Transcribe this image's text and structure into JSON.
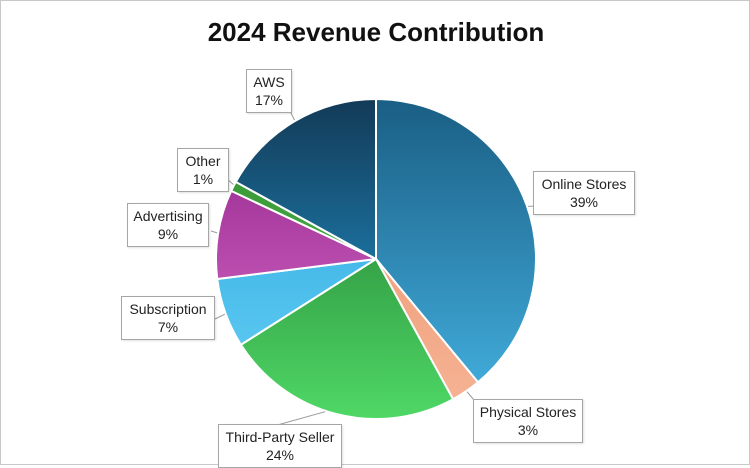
{
  "chart_data": {
    "type": "pie",
    "title": "2024 Revenue Contribution",
    "slices": [
      {
        "label": "Online Stores",
        "value": 39,
        "value_label": "39%",
        "color_light": "#45b3e3",
        "color_dark": "#1a5e84"
      },
      {
        "label": "Physical Stores",
        "value": 3,
        "value_label": "3%",
        "color_light": "#f6b496",
        "color_dark": "#ea9067"
      },
      {
        "label": "Third-Party Seller",
        "value": 24,
        "value_label": "24%",
        "color_light": "#4fd866",
        "color_dark": "#1b6e28"
      },
      {
        "label": "Subscription",
        "value": 7,
        "value_label": "7%",
        "color_light": "#67d0f6",
        "color_dark": "#26a3dc"
      },
      {
        "label": "Advertising",
        "value": 9,
        "value_label": "9%",
        "color_light": "#de74d2",
        "color_dark": "#8e1f84"
      },
      {
        "label": "Other",
        "value": 1,
        "value_label": "1%",
        "color_light": "#5cc95a",
        "color_dark": "#2e8a2c"
      },
      {
        "label": "AWS",
        "value": 17,
        "value_label": "17%",
        "color_light": "#22a4e0",
        "color_dark": "#133a57"
      }
    ],
    "legend": "none"
  }
}
